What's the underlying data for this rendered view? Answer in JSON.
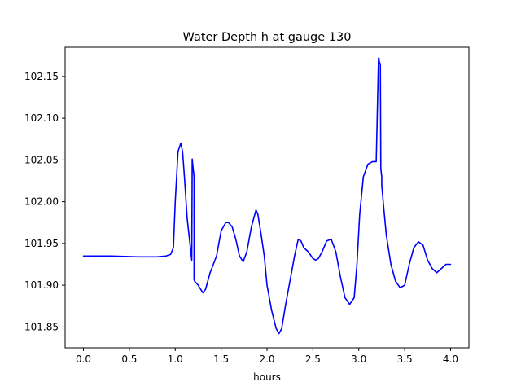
{
  "chart_data": {
    "type": "line",
    "title": "Water Depth h at gauge 130",
    "xlabel": "hours",
    "ylabel": "",
    "xlim": [
      -0.2,
      4.2
    ],
    "ylim": [
      101.825,
      102.185
    ],
    "x_ticks": [
      0.0,
      0.5,
      1.0,
      1.5,
      2.0,
      2.5,
      3.0,
      3.5,
      4.0
    ],
    "x_tick_labels": [
      "0.0",
      "0.5",
      "1.0",
      "1.5",
      "2.0",
      "2.5",
      "3.0",
      "3.5",
      "4.0"
    ],
    "y_ticks": [
      101.85,
      101.9,
      101.95,
      102.0,
      102.05,
      102.1,
      102.15
    ],
    "y_tick_labels": [
      "101.85",
      "101.90",
      "101.95",
      "102.00",
      "102.05",
      "102.10",
      "102.15"
    ],
    "grid": false,
    "series": [
      {
        "color": "#0000ff",
        "x": [
          0.0,
          0.3,
          0.6,
          0.8,
          0.9,
          0.95,
          0.98,
          1.0,
          1.03,
          1.06,
          1.08,
          1.1,
          1.13,
          1.16,
          1.18,
          1.185,
          1.19,
          1.2,
          1.205,
          1.205,
          1.21,
          1.25,
          1.3,
          1.33,
          1.38,
          1.45,
          1.5,
          1.55,
          1.58,
          1.62,
          1.66,
          1.7,
          1.74,
          1.78,
          1.83,
          1.88,
          1.9,
          1.93,
          1.97,
          2.0,
          2.05,
          2.1,
          2.13,
          2.16,
          2.2,
          2.25,
          2.3,
          2.34,
          2.37,
          2.4,
          2.45,
          2.5,
          2.53,
          2.56,
          2.6,
          2.65,
          2.7,
          2.75,
          2.8,
          2.85,
          2.9,
          2.95,
          2.98,
          3.01,
          3.05,
          3.1,
          3.15,
          3.19,
          3.215,
          3.22,
          3.22,
          3.225,
          3.235,
          3.24,
          3.25,
          3.25,
          3.27,
          3.3,
          3.35,
          3.4,
          3.45,
          3.5,
          3.55,
          3.6,
          3.65,
          3.7,
          3.75,
          3.8,
          3.85,
          3.9,
          3.95,
          4.0
        ],
        "y": [
          101.935,
          101.935,
          101.934,
          101.934,
          101.935,
          101.937,
          101.945,
          102.0,
          102.06,
          102.07,
          102.06,
          102.03,
          101.98,
          101.95,
          101.93,
          102.051,
          102.045,
          102.035,
          102.03,
          101.907,
          101.905,
          101.9,
          101.891,
          101.895,
          101.915,
          101.935,
          101.965,
          101.975,
          101.975,
          101.97,
          101.955,
          101.935,
          101.928,
          101.94,
          101.97,
          101.99,
          101.985,
          101.965,
          101.935,
          101.9,
          101.87,
          101.848,
          101.842,
          101.848,
          101.875,
          101.905,
          101.935,
          101.955,
          101.953,
          101.945,
          101.94,
          101.932,
          101.93,
          101.932,
          101.94,
          101.953,
          101.955,
          101.94,
          101.91,
          101.885,
          101.877,
          101.885,
          101.925,
          101.985,
          102.03,
          102.045,
          102.048,
          102.048,
          102.172,
          102.172,
          102.17,
          102.167,
          102.165,
          102.04,
          102.03,
          102.02,
          101.995,
          101.96,
          101.925,
          101.905,
          101.897,
          101.9,
          101.925,
          101.945,
          101.952,
          101.948,
          101.93,
          101.92,
          101.915,
          101.92,
          101.925,
          101.925
        ]
      }
    ]
  }
}
